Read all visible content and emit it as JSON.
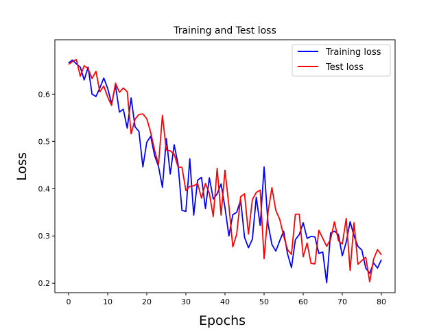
{
  "chart_data": {
    "type": "line",
    "title": "Training and Test loss",
    "xlabel": "Epochs",
    "ylabel": "Loss",
    "xlim": [
      -3.5,
      83.5
    ],
    "ylim": [
      0.18,
      0.715
    ],
    "xticks": [
      0,
      10,
      20,
      30,
      40,
      50,
      60,
      70,
      80
    ],
    "yticks": [
      0.2,
      0.3,
      0.4,
      0.5,
      0.6
    ],
    "grid": false,
    "legend": "top-right",
    "x": [
      0,
      1,
      2,
      3,
      4,
      5,
      6,
      7,
      8,
      9,
      10,
      11,
      12,
      13,
      14,
      15,
      16,
      17,
      18,
      19,
      20,
      21,
      22,
      23,
      24,
      25,
      26,
      27,
      28,
      29,
      30,
      31,
      32,
      33,
      34,
      35,
      36,
      37,
      38,
      39,
      40,
      41,
      42,
      43,
      44,
      45,
      46,
      47,
      48,
      49,
      50,
      51,
      52,
      53,
      54,
      55,
      56,
      57,
      58,
      59,
      60,
      61,
      62,
      63,
      64,
      65,
      66,
      67,
      68,
      69,
      70,
      71,
      72,
      73,
      74,
      75,
      76,
      77,
      78,
      79,
      80
    ],
    "series": [
      {
        "name": "Training loss",
        "color": "#0000ff",
        "values": [
          0.666,
          0.672,
          0.664,
          0.657,
          0.63,
          0.657,
          0.6,
          0.595,
          0.613,
          0.634,
          0.612,
          0.58,
          0.618,
          0.562,
          0.568,
          0.528,
          0.592,
          0.531,
          0.521,
          0.446,
          0.498,
          0.511,
          0.47,
          0.447,
          0.403,
          0.506,
          0.431,
          0.493,
          0.452,
          0.354,
          0.352,
          0.463,
          0.344,
          0.418,
          0.424,
          0.358,
          0.423,
          0.378,
          0.389,
          0.41,
          0.36,
          0.3,
          0.345,
          0.35,
          0.376,
          0.297,
          0.275,
          0.293,
          0.382,
          0.322,
          0.446,
          0.326,
          0.282,
          0.268,
          0.29,
          0.31,
          0.262,
          0.233,
          0.292,
          0.303,
          0.328,
          0.295,
          0.299,
          0.298,
          0.263,
          0.266,
          0.201,
          0.306,
          0.31,
          0.303,
          0.258,
          0.287,
          0.33,
          0.3,
          0.278,
          0.27,
          0.232,
          0.221,
          0.243,
          0.232,
          0.25
        ]
      },
      {
        "name": "Test loss",
        "color": "#ff0000",
        "values": [
          0.663,
          0.669,
          0.673,
          0.638,
          0.66,
          0.654,
          0.633,
          0.648,
          0.605,
          0.617,
          0.594,
          0.576,
          0.623,
          0.604,
          0.613,
          0.605,
          0.516,
          0.547,
          0.557,
          0.558,
          0.548,
          0.519,
          0.481,
          0.451,
          0.555,
          0.482,
          0.48,
          0.473,
          0.446,
          0.445,
          0.396,
          0.405,
          0.406,
          0.411,
          0.38,
          0.411,
          0.39,
          0.341,
          0.443,
          0.344,
          0.439,
          0.364,
          0.277,
          0.304,
          0.383,
          0.389,
          0.304,
          0.377,
          0.392,
          0.397,
          0.252,
          0.35,
          0.402,
          0.354,
          0.335,
          0.3,
          0.271,
          0.261,
          0.346,
          0.346,
          0.256,
          0.285,
          0.242,
          0.241,
          0.312,
          0.295,
          0.278,
          0.293,
          0.33,
          0.29,
          0.283,
          0.337,
          0.227,
          0.328,
          0.24,
          0.248,
          0.255,
          0.203,
          0.251,
          0.271,
          0.26
        ]
      }
    ]
  }
}
